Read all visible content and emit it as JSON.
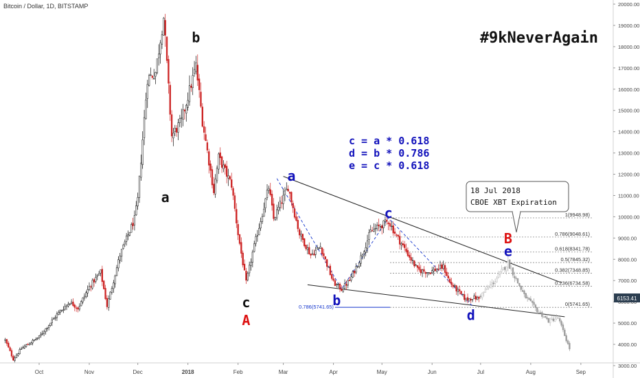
{
  "header": {
    "symbol": "Bitcoin / Dollar, 1D, BITSTAMP"
  },
  "chart_data": {
    "type": "candlestick",
    "title": "",
    "hashtag": "#9kNeverAgain",
    "y_ticks": [
      "20000.00",
      "19000.00",
      "18000.00",
      "17000.00",
      "16000.00",
      "15000.00",
      "14000.00",
      "13000.00",
      "12000.00",
      "11000.00",
      "10000.00",
      "9000.00",
      "8000.00",
      "7000.00",
      "6000.00",
      "5000.00",
      "4000.00",
      "3000.00"
    ],
    "x_ticks": [
      "Oct",
      "Nov",
      "Dec",
      "2018",
      "Feb",
      "Mar",
      "Apr",
      "May",
      "Jun",
      "Jul",
      "Aug",
      "Sep"
    ],
    "ylim": [
      3000,
      20000
    ],
    "last_price": "6153.41",
    "close_series": {
      "start_date": "2017-09-10",
      "end_date": "2018-06-30",
      "anchors": [
        [
          "2017-09-10",
          4200
        ],
        [
          "2017-09-15",
          3300
        ],
        [
          "2017-09-20",
          3800
        ],
        [
          "2017-10-01",
          4350
        ],
        [
          "2017-10-12",
          5400
        ],
        [
          "2017-10-20",
          6000
        ],
        [
          "2017-10-25",
          5700
        ],
        [
          "2017-11-01",
          6700
        ],
        [
          "2017-11-08",
          7400
        ],
        [
          "2017-11-12",
          5800
        ],
        [
          "2017-11-20",
          8200
        ],
        [
          "2017-11-29",
          9900
        ],
        [
          "2017-12-01",
          10800
        ],
        [
          "2017-12-07",
          16500
        ],
        [
          "2017-12-12",
          16800
        ],
        [
          "2017-12-17",
          19400
        ],
        [
          "2017-12-22",
          13800
        ],
        [
          "2017-12-28",
          14500
        ],
        [
          "2018-01-06",
          17100
        ],
        [
          "2018-01-10",
          14500
        ],
        [
          "2018-01-17",
          11200
        ],
        [
          "2018-01-20",
          12800
        ],
        [
          "2018-01-28",
          11500
        ],
        [
          "2018-02-01",
          9200
        ],
        [
          "2018-02-06",
          6900
        ],
        [
          "2018-02-10",
          8300
        ],
        [
          "2018-02-20",
          11400
        ],
        [
          "2018-02-23",
          9900
        ],
        [
          "2018-03-04",
          11400
        ],
        [
          "2018-03-11",
          9200
        ],
        [
          "2018-03-18",
          8200
        ],
        [
          "2018-03-24",
          8600
        ],
        [
          "2018-04-01",
          6900
        ],
        [
          "2018-04-06",
          6600
        ],
        [
          "2018-04-11",
          7000
        ],
        [
          "2018-04-18",
          8100
        ],
        [
          "2018-04-24",
          9300
        ],
        [
          "2018-05-05",
          9800
        ],
        [
          "2018-05-10",
          9100
        ],
        [
          "2018-05-15",
          8500
        ],
        [
          "2018-05-23",
          7500
        ],
        [
          "2018-05-30",
          7400
        ],
        [
          "2018-06-08",
          7650
        ],
        [
          "2018-06-12",
          6900
        ],
        [
          "2018-06-22",
          6100
        ],
        [
          "2018-06-26",
          6200
        ],
        [
          "2018-06-30",
          6150
        ]
      ]
    },
    "projection_series": {
      "start_date": "2018-07-01",
      "end_date": "2018-08-25",
      "anchors": [
        [
          "2018-07-01",
          6300
        ],
        [
          "2018-07-10",
          7000
        ],
        [
          "2018-07-18",
          7850
        ],
        [
          "2018-07-22",
          7200
        ],
        [
          "2018-07-28",
          6300
        ],
        [
          "2018-08-05",
          5600
        ],
        [
          "2018-08-12",
          5100
        ],
        [
          "2018-08-18",
          5250
        ],
        [
          "2018-08-25",
          3800
        ]
      ]
    },
    "wave_labels": [
      {
        "text": "a",
        "color": "#111111",
        "date": "2017-12-18",
        "price": 10700
      },
      {
        "text": "b",
        "color": "#111111",
        "date": "2018-01-06",
        "price": 18200
      },
      {
        "text": "c",
        "color": "#111111",
        "date": "2018-02-06",
        "price": 5750
      },
      {
        "text": "A",
        "color": "#dd1111",
        "date": "2018-02-06",
        "price": 4900
      },
      {
        "text": "a",
        "color": "#1111bb",
        "date": "2018-03-06",
        "price": 11700
      },
      {
        "text": "b",
        "color": "#1111bb",
        "date": "2018-04-03",
        "price": 5850
      },
      {
        "text": "c",
        "color": "#1111bb",
        "date": "2018-05-05",
        "price": 9950
      },
      {
        "text": "d",
        "color": "#1111bb",
        "date": "2018-06-25",
        "price": 5150
      },
      {
        "text": "e",
        "color": "#1111bb",
        "date": "2018-07-18",
        "price": 8150
      },
      {
        "text": "B",
        "color": "#dd1111",
        "date": "2018-07-18",
        "price": 8750
      }
    ],
    "formula_lines": [
      "c = a * 0.618",
      "d = b * 0.786",
      "e = c * 0.618"
    ],
    "callout": {
      "lines": [
        "18 Jul 2018",
        "CBOE XBT Expiration"
      ],
      "date": "2018-07-18",
      "price": 9100
    },
    "fib_levels": [
      {
        "label": "1(9948.98)",
        "price": 9948.98
      },
      {
        "label": "0.786(9048.61)",
        "price": 9048.61
      },
      {
        "label": "0.618(8341.78)",
        "price": 8341.78
      },
      {
        "label": "0.5(7845.32)",
        "price": 7845.32
      },
      {
        "label": "0.382(7348.85)",
        "price": 7348.85
      },
      {
        "label": "0.236(6734.58)",
        "price": 6734.58
      },
      {
        "label": "0(5741.65)",
        "price": 5741.65
      }
    ],
    "retrace_label": {
      "text": "0.786(5741.65)",
      "price": 5741.65
    },
    "trendlines": [
      {
        "from": [
          "2018-03-01",
          11900
        ],
        "to": [
          "2018-08-20",
          6900
        ]
      },
      {
        "from": [
          "2018-03-16",
          6800
        ],
        "to": [
          "2018-08-22",
          5300
        ]
      }
    ],
    "wave_path": [
      [
        "2018-02-25",
        11800
      ],
      [
        "2018-04-06",
        6600
      ],
      [
        "2018-05-05",
        9950
      ],
      [
        "2018-06-26",
        5800
      ]
    ]
  },
  "colors": {
    "up": "#111111",
    "down": "#cc2222",
    "projection": "#b8b8b8",
    "fib": "#888888",
    "blue": "#1133cc",
    "price_badge": "#2c3e50"
  }
}
